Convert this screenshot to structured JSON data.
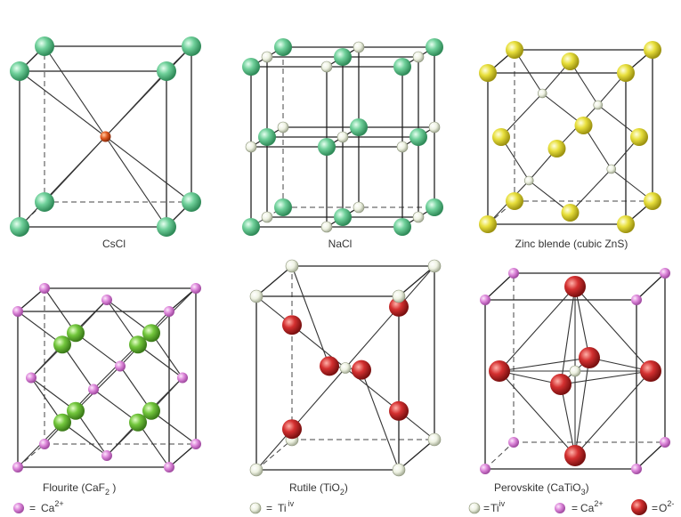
{
  "colors": {
    "green": "#5cc08a",
    "yellow": "#e3dc3a",
    "pink": "#d979d6",
    "red": "#cc2a2a",
    "white": "#eef2e4",
    "lime": "#6cc23a",
    "orange": "#d04a20"
  },
  "panels": [
    {
      "id": "cscl",
      "caption": "CsCl"
    },
    {
      "id": "nacl",
      "caption": "NaCl"
    },
    {
      "id": "znS",
      "caption": "Zinc blende (cubic ZnS)"
    },
    {
      "id": "caf2",
      "caption_main": "Flourite (CaF",
      "caption_sub": "2",
      "caption_end": " )"
    },
    {
      "id": "tio2",
      "caption_main": "Rutile (TiO",
      "caption_sub": "2",
      "caption_end": ")"
    },
    {
      "id": "catio3",
      "caption_main": "Perovskite (CaTiO",
      "caption_sub": "3",
      "caption_end": ")"
    }
  ],
  "legend": {
    "ca1": {
      "eq": "=",
      "label": "Ca",
      "sup": "2+"
    },
    "ti1": {
      "eq": "=",
      "label": "Ti",
      "sup": "iv"
    },
    "ti2": {
      "eq": "=",
      "label": "Ti",
      "sup": "iv"
    },
    "ca2": {
      "eq": "=",
      "label": "Ca",
      "sup": "2+"
    },
    "o": {
      "eq": "=",
      "label": "O",
      "sup": "2-"
    }
  }
}
